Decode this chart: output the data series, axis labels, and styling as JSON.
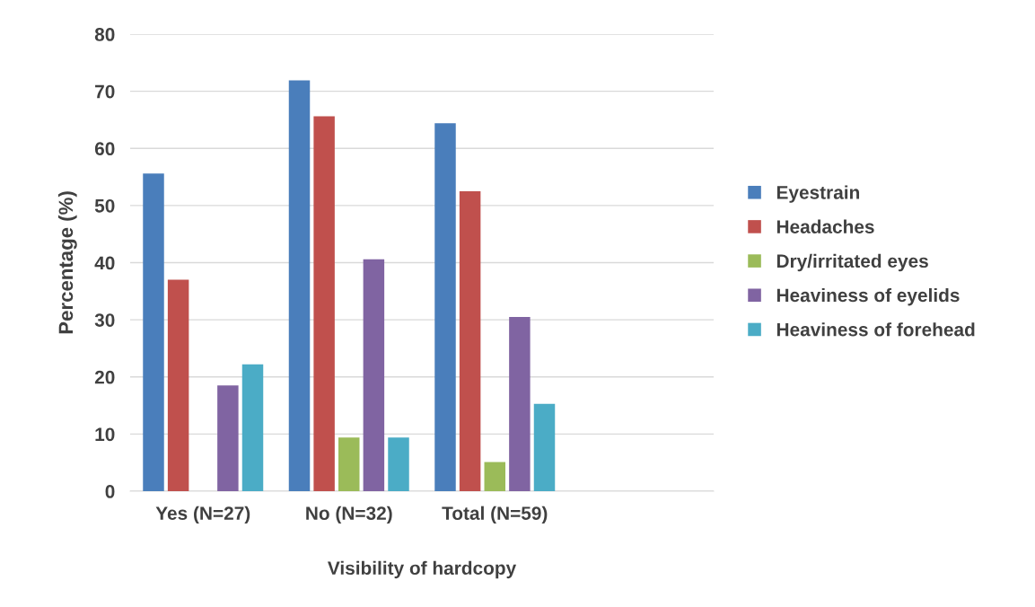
{
  "chart_data": {
    "type": "bar",
    "xlabel": "Visibility of hardcopy",
    "ylabel": "Percentage (%)",
    "categories": [
      "Yes (N=27)",
      "No (N=32)",
      "Total (N=59)",
      null
    ],
    "series": [
      {
        "name": "Eyestrain",
        "color": "#4a7ebb",
        "values": [
          55.6,
          71.9,
          64.4,
          null
        ]
      },
      {
        "name": "Headaches",
        "color": "#c0504d",
        "values": [
          37.0,
          65.6,
          52.5,
          null
        ]
      },
      {
        "name": "Dry/irritated eyes",
        "color": "#9bbb59",
        "values": [
          0,
          9.4,
          5.1,
          null
        ]
      },
      {
        "name": "Heaviness of eyelids",
        "color": "#8064a2",
        "values": [
          18.5,
          40.6,
          30.5,
          null
        ]
      },
      {
        "name": "Heaviness of forehead",
        "color": "#4bacc6",
        "values": [
          22.2,
          9.4,
          15.3,
          null
        ]
      }
    ],
    "ylim": [
      0,
      80
    ],
    "yticks": [
      0,
      10,
      20,
      30,
      40,
      50,
      60,
      70,
      80
    ],
    "grid": "y",
    "legend": "right"
  }
}
